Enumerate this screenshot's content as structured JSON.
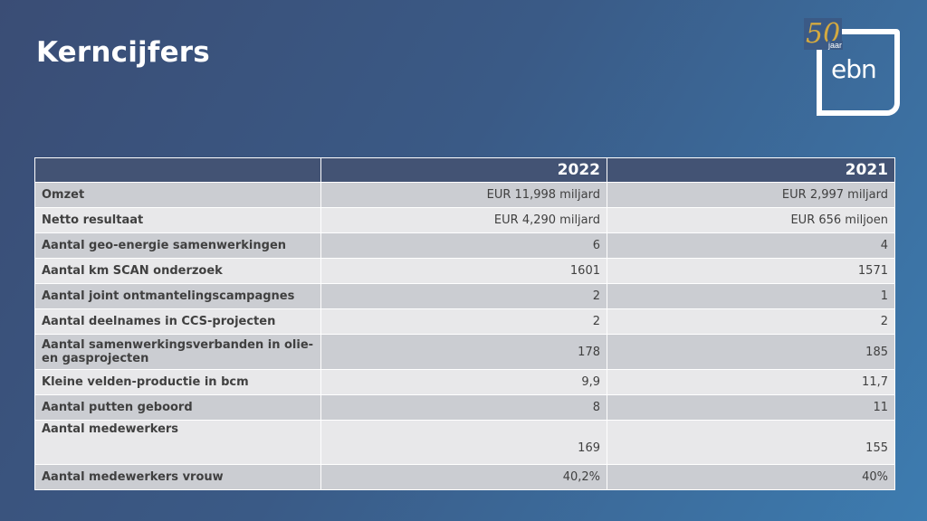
{
  "slide": {
    "title": "Kerncijfers"
  },
  "logo": {
    "anniversary": "50",
    "anniversary_word": "jaar",
    "brand": "ebn"
  },
  "table": {
    "headers": [
      "",
      "2022",
      "2021"
    ],
    "rows": [
      {
        "label": "Omzet",
        "v2022": "EUR 11,998 miljard",
        "v2021": "EUR 2,997 miljard"
      },
      {
        "label": "Netto resultaat",
        "v2022": "EUR 4,290 miljard",
        "v2021": "EUR 656 miljoen"
      },
      {
        "label": "Aantal geo-energie samenwerkingen",
        "v2022": "6",
        "v2021": "4"
      },
      {
        "label": "Aantal km SCAN onderzoek",
        "v2022": "1601",
        "v2021": "1571"
      },
      {
        "label": "Aantal joint ontmantelingscampagnes",
        "v2022": "2",
        "v2021": "1"
      },
      {
        "label": "Aantal deelnames in CCS-projecten",
        "v2022": "2",
        "v2021": "2"
      },
      {
        "label": "Aantal samenwerkingsverbanden in olie- en gasprojecten",
        "v2022": "178",
        "v2021": "185"
      },
      {
        "label": "Kleine velden-productie in bcm",
        "v2022": "9,9",
        "v2021": "11,7"
      },
      {
        "label": "Aantal putten geboord",
        "v2022": "8",
        "v2021": "11"
      },
      {
        "label": "Aantal medewerkers",
        "v2022": "169",
        "v2021": "155"
      },
      {
        "label": "Aantal medewerkers vrouw",
        "v2022": "40,2%",
        "v2021": "40%"
      }
    ]
  }
}
